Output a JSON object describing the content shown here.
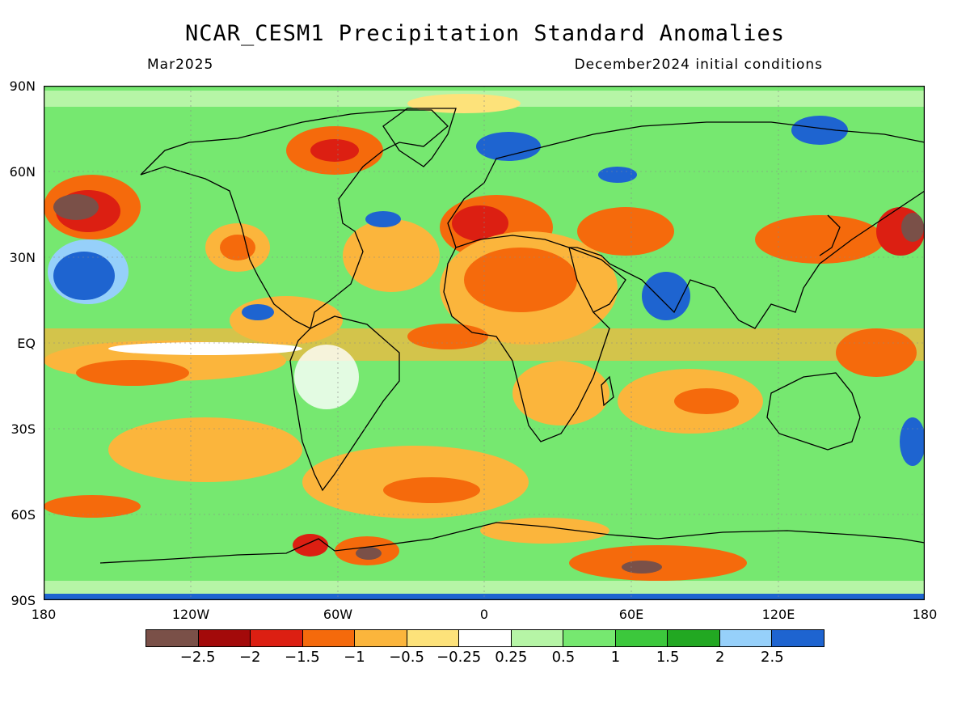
{
  "title": "NCAR_CESM1 Precipitation Standard Anomalies",
  "valid_month": "Mar2025",
  "init_conditions": "December2024 initial conditions",
  "lat_labels": [
    "90N",
    "60N",
    "30N",
    "EQ",
    "30S",
    "60S",
    "90S"
  ],
  "lon_labels": [
    "180",
    "120W",
    "60W",
    "0",
    "60E",
    "120E",
    "180"
  ],
  "legend": {
    "colors": [
      "#7a5048",
      "#a30a0a",
      "#dc1f12",
      "#f56a0c",
      "#fbb53c",
      "#fde27a",
      "#ffffff",
      "#b6f5a6",
      "#76e870",
      "#3cc83c",
      "#22a822",
      "#96d0fa",
      "#1e64d0"
    ],
    "labels": [
      "-2.5",
      "-2",
      "-1.5",
      "-1",
      "-0.5",
      "-0.25",
      "0.25",
      "0.5",
      "1",
      "1.5",
      "2",
      "2.5"
    ]
  },
  "colors": {
    "ocean_background": "#76e870",
    "coastline": "#000000"
  }
}
